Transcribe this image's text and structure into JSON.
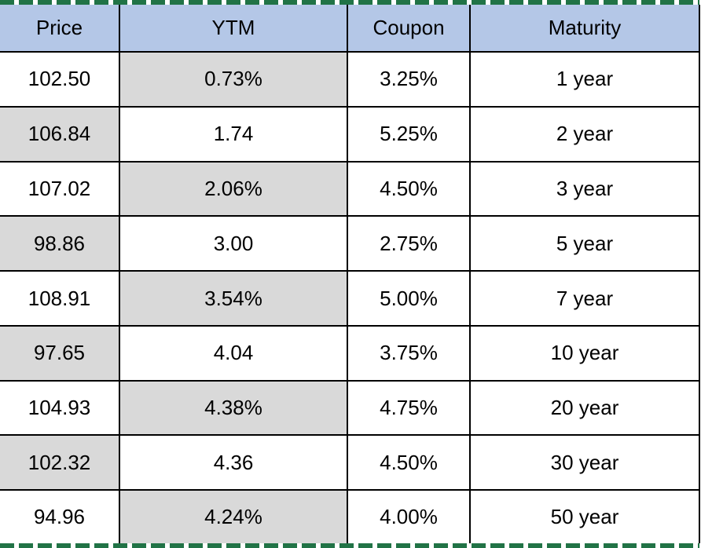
{
  "table": {
    "columns": [
      {
        "label": "Price"
      },
      {
        "label": "YTM"
      },
      {
        "label": "Coupon"
      },
      {
        "label": "Maturity"
      }
    ],
    "rows": [
      {
        "cells": [
          "102.50",
          "0.73%",
          "3.25%",
          "1 year"
        ],
        "shaded": [
          false,
          true,
          false,
          false
        ]
      },
      {
        "cells": [
          "106.84",
          "1.74",
          "5.25%",
          "2 year"
        ],
        "shaded": [
          true,
          false,
          false,
          false
        ]
      },
      {
        "cells": [
          "107.02",
          "2.06%",
          "4.50%",
          "3 year"
        ],
        "shaded": [
          false,
          true,
          false,
          false
        ]
      },
      {
        "cells": [
          "98.86",
          "3.00",
          "2.75%",
          "5 year"
        ],
        "shaded": [
          true,
          false,
          false,
          false
        ]
      },
      {
        "cells": [
          "108.91",
          "3.54%",
          "5.00%",
          "7 year"
        ],
        "shaded": [
          false,
          true,
          false,
          false
        ]
      },
      {
        "cells": [
          "97.65",
          "4.04",
          "3.75%",
          "10 year"
        ],
        "shaded": [
          true,
          false,
          false,
          false
        ]
      },
      {
        "cells": [
          "104.93",
          "4.38%",
          "4.75%",
          "20 year"
        ],
        "shaded": [
          false,
          true,
          false,
          false
        ]
      },
      {
        "cells": [
          "102.32",
          "4.36",
          "4.50%",
          "30 year"
        ],
        "shaded": [
          true,
          false,
          false,
          false
        ]
      },
      {
        "cells": [
          "94.96",
          "4.24%",
          "4.00%",
          "50 year"
        ],
        "shaded": [
          false,
          true,
          false,
          false
        ]
      }
    ]
  },
  "colors": {
    "header_bg": "#b4c7e7",
    "stripe_bg": "#d9d9d9",
    "border": "#000000",
    "marquee": "#217346",
    "text": "#000000",
    "background": "#ffffff"
  }
}
